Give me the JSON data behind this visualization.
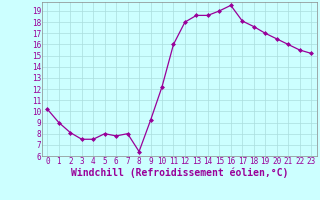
{
  "x": [
    0,
    1,
    2,
    3,
    4,
    5,
    6,
    7,
    8,
    9,
    10,
    11,
    12,
    13,
    14,
    15,
    16,
    17,
    18,
    19,
    20,
    21,
    22,
    23
  ],
  "y": [
    10.2,
    9.0,
    8.1,
    7.5,
    7.5,
    8.0,
    7.8,
    8.0,
    6.4,
    9.2,
    12.2,
    16.0,
    18.0,
    18.6,
    18.6,
    19.0,
    19.5,
    18.1,
    17.6,
    17.0,
    16.5,
    16.0,
    15.5,
    15.2
  ],
  "line_color": "#990099",
  "marker": "D",
  "marker_size": 2.0,
  "bg_color": "#ccffff",
  "grid_color": "#aadddd",
  "xlabel": "Windchill (Refroidissement éolien,°C)",
  "xlabel_color": "#990099",
  "ylim": [
    6,
    19.8
  ],
  "xlim": [
    -0.5,
    23.5
  ],
  "yticks": [
    6,
    7,
    8,
    9,
    10,
    11,
    12,
    13,
    14,
    15,
    16,
    17,
    18,
    19
  ],
  "xticks": [
    0,
    1,
    2,
    3,
    4,
    5,
    6,
    7,
    8,
    9,
    10,
    11,
    12,
    13,
    14,
    15,
    16,
    17,
    18,
    19,
    20,
    21,
    22,
    23
  ],
  "tick_fontsize": 5.5,
  "xlabel_fontsize": 7.0,
  "title": ""
}
